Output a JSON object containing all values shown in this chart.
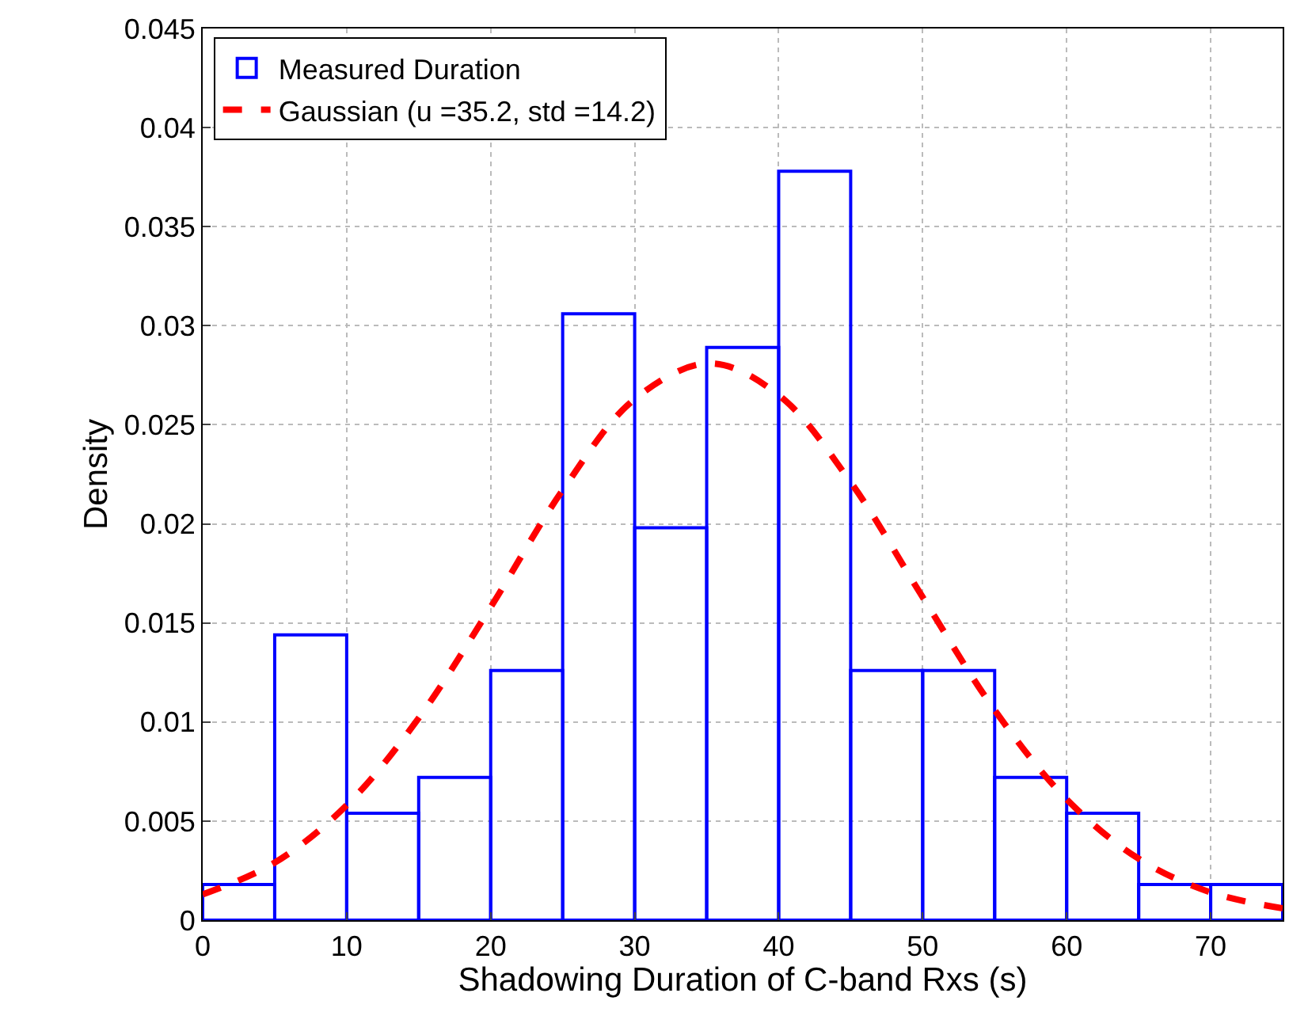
{
  "chart_data": {
    "type": "histogram",
    "xlabel": "Shadowing Duration of C-band Rxs (s)",
    "ylabel": "Density",
    "bins": [
      0,
      5,
      10,
      15,
      20,
      25,
      30,
      35,
      40,
      45,
      50,
      55,
      60,
      65,
      70,
      75
    ],
    "series": [
      {
        "name": "Measured Duration",
        "color": "#0000ff",
        "values": [
          0.0018,
          0.0144,
          0.0054,
          0.0072,
          0.0126,
          0.0306,
          0.0198,
          0.0289,
          0.0378,
          0.0126,
          0.0126,
          0.0072,
          0.0054,
          0.0018,
          0.0018
        ]
      },
      {
        "name": "Gaussian (u =35.2, std =14.2)",
        "type": "line",
        "color": "#ff0000",
        "line_style": "dashed",
        "x": [
          0,
          5,
          10,
          15,
          20,
          25,
          30,
          35.2,
          40,
          45,
          50,
          55,
          60,
          65,
          70,
          75
        ],
        "values": [
          0.0013,
          0.0029,
          0.0058,
          0.0102,
          0.0158,
          0.0217,
          0.0263,
          0.0281,
          0.0265,
          0.0221,
          0.0163,
          0.0106,
          0.0061,
          0.0031,
          0.0014,
          0.0006
        ]
      }
    ],
    "xlim": [
      0,
      75
    ],
    "xticks": [
      0,
      10,
      20,
      30,
      40,
      50,
      60,
      70
    ],
    "ylim": [
      0,
      0.045
    ],
    "yticks": [
      0,
      0.005,
      0.01,
      0.015,
      0.02,
      0.025,
      0.03,
      0.035,
      0.04,
      0.045
    ],
    "grid": true,
    "legend": "top left"
  }
}
